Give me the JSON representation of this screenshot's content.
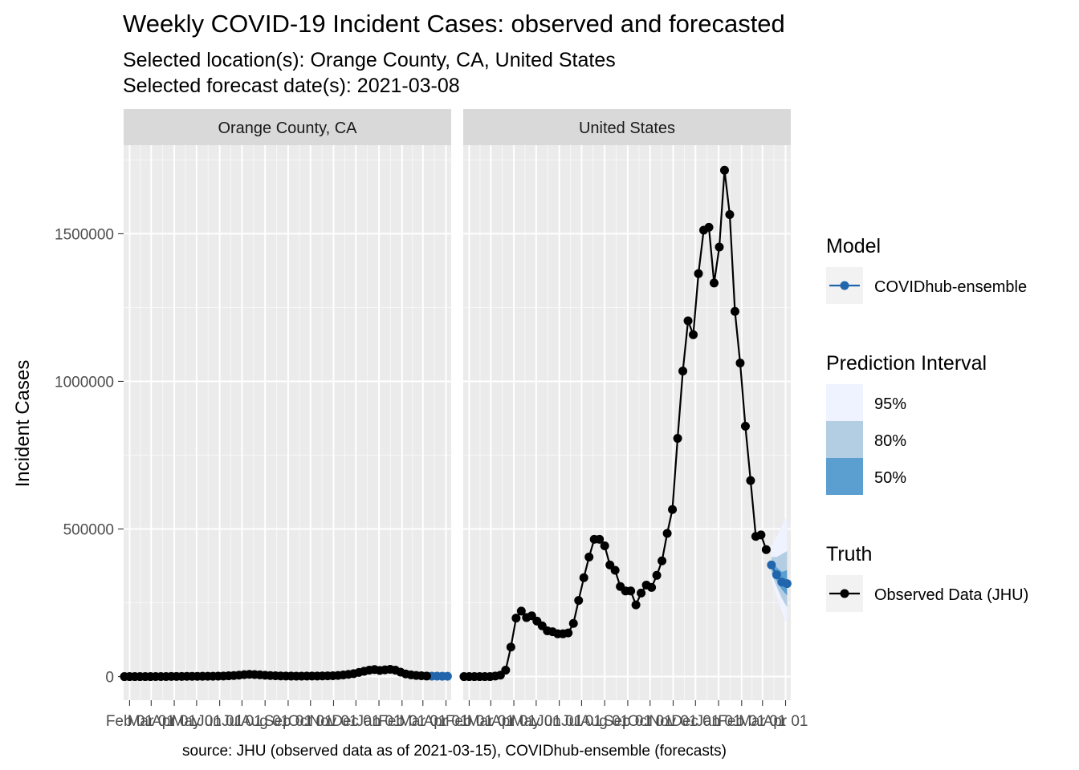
{
  "chart_data": {
    "type": "line",
    "title": "Weekly COVID-19 Incident Cases: observed and forecasted",
    "subtitle_lines": [
      "Selected location(s): Orange County, CA, United States",
      "Selected forecast date(s): 2021-03-08"
    ],
    "caption": "source: JHU (observed data as of 2021-03-15), COVIDhub-ensemble (forecasts)",
    "ylabel": "Incident Cases",
    "xlabel": "",
    "ylim": [
      -80000,
      1800000
    ],
    "y_ticks": [
      0,
      500000,
      1000000,
      1500000
    ],
    "y_tick_labels": [
      "0",
      "500000",
      "1000000",
      "1500000"
    ],
    "x_range": [
      "2020-01-24",
      "2021-04-08"
    ],
    "x_tick_dates": [
      "2020-02-01",
      "2020-03-01",
      "2020-04-01",
      "2020-05-01",
      "2020-06-01",
      "2020-07-01",
      "2020-08-01",
      "2020-09-01",
      "2020-10-01",
      "2020-11-01",
      "2020-12-01",
      "2021-01-01",
      "2021-02-01",
      "2021-03-01",
      "2021-04-01"
    ],
    "x_tick_labels": [
      "Feb 01",
      "Mar 01",
      "Apr 01",
      "May 01",
      "Jun 01",
      "Jul 01",
      "Aug 01",
      "Sep 01",
      "Oct 01",
      "Nov 01",
      "Dec 01",
      "Jan 01",
      "Feb 01",
      "Mar 01",
      "Apr 01"
    ],
    "grid": true,
    "legend_placement": "right",
    "colors": {
      "panel_bg": "#ebebeb",
      "strip_bg": "#d9d9d9",
      "truth": "#000000",
      "forecast": "#2166ac",
      "pi95": "#eff3ff",
      "pi80": "#b3cde3",
      "pi50": "#5b9fd0"
    },
    "panels": [
      {
        "name": "Orange County, CA",
        "truth": {
          "x": [
            "2020-01-25",
            "2020-02-01",
            "2020-02-08",
            "2020-02-15",
            "2020-02-22",
            "2020-02-29",
            "2020-03-07",
            "2020-03-14",
            "2020-03-21",
            "2020-03-28",
            "2020-04-04",
            "2020-04-11",
            "2020-04-18",
            "2020-04-25",
            "2020-05-02",
            "2020-05-09",
            "2020-05-16",
            "2020-05-23",
            "2020-05-30",
            "2020-06-06",
            "2020-06-13",
            "2020-06-20",
            "2020-06-27",
            "2020-07-04",
            "2020-07-11",
            "2020-07-18",
            "2020-07-25",
            "2020-08-01",
            "2020-08-08",
            "2020-08-15",
            "2020-08-22",
            "2020-08-29",
            "2020-09-05",
            "2020-09-12",
            "2020-09-19",
            "2020-09-26",
            "2020-10-03",
            "2020-10-10",
            "2020-10-17",
            "2020-10-24",
            "2020-10-31",
            "2020-11-07",
            "2020-11-14",
            "2020-11-21",
            "2020-11-28",
            "2020-12-05",
            "2020-12-12",
            "2020-12-19",
            "2020-12-26",
            "2021-01-02",
            "2021-01-09",
            "2021-01-16",
            "2021-01-23",
            "2021-01-30",
            "2021-02-06",
            "2021-02-13",
            "2021-02-20",
            "2021-02-27",
            "2021-03-06"
          ],
          "y": [
            0,
            0,
            0,
            0,
            0,
            0,
            20,
            80,
            250,
            400,
            500,
            600,
            700,
            800,
            900,
            1000,
            1100,
            1200,
            1500,
            2000,
            2700,
            3500,
            5000,
            6500,
            7500,
            7000,
            6000,
            4500,
            3500,
            2800,
            2200,
            1900,
            1700,
            1600,
            1600,
            1700,
            1800,
            1900,
            2100,
            2400,
            3000,
            4000,
            5500,
            7500,
            10000,
            14000,
            18000,
            22000,
            24000,
            21000,
            23000,
            24500,
            22000,
            15000,
            9000,
            6000,
            4000,
            2800,
            2000
          ]
        },
        "forecast": {
          "x": [
            "2021-03-13",
            "2021-03-20",
            "2021-03-27",
            "2021-04-03"
          ],
          "median": [
            1600,
            1400,
            1250,
            1150
          ],
          "pi95": {
            "lower": [
              800,
              500,
              400,
              300
            ],
            "upper": [
              2600,
              2800,
              3000,
              3200
            ]
          },
          "pi80": {
            "lower": [
              1100,
              900,
              700,
              600
            ],
            "upper": [
              2100,
              2100,
              2200,
              2300
            ]
          },
          "pi50": {
            "lower": [
              1350,
              1150,
              1000,
              900
            ],
            "upper": [
              1850,
              1700,
              1600,
              1550
            ]
          }
        }
      },
      {
        "name": "United States",
        "truth": {
          "x": [
            "2020-01-25",
            "2020-02-01",
            "2020-02-08",
            "2020-02-15",
            "2020-02-22",
            "2020-02-29",
            "2020-03-07",
            "2020-03-14",
            "2020-03-21",
            "2020-03-28",
            "2020-04-04",
            "2020-04-11",
            "2020-04-18",
            "2020-04-25",
            "2020-05-02",
            "2020-05-09",
            "2020-05-16",
            "2020-05-23",
            "2020-05-30",
            "2020-06-06",
            "2020-06-13",
            "2020-06-20",
            "2020-06-27",
            "2020-07-04",
            "2020-07-11",
            "2020-07-18",
            "2020-07-25",
            "2020-08-01",
            "2020-08-08",
            "2020-08-15",
            "2020-08-22",
            "2020-08-29",
            "2020-09-05",
            "2020-09-12",
            "2020-09-19",
            "2020-09-26",
            "2020-10-03",
            "2020-10-10",
            "2020-10-17",
            "2020-10-24",
            "2020-10-31",
            "2020-11-07",
            "2020-11-14",
            "2020-11-21",
            "2020-11-28",
            "2020-12-05",
            "2020-12-12",
            "2020-12-19",
            "2020-12-26",
            "2021-01-02",
            "2021-01-09",
            "2021-01-16",
            "2021-01-23",
            "2021-01-30",
            "2021-02-06",
            "2021-02-13",
            "2021-02-20",
            "2021-02-27",
            "2021-03-06"
          ],
          "y": [
            0,
            0,
            0,
            0,
            0,
            0,
            2000,
            5000,
            22000,
            100000,
            198000,
            222000,
            200000,
            206000,
            188000,
            172000,
            155000,
            152000,
            145000,
            145000,
            148000,
            180000,
            258000,
            335000,
            405000,
            465000,
            465000,
            443000,
            378000,
            360000,
            305000,
            290000,
            290000,
            243000,
            283000,
            310000,
            302000,
            343000,
            392000,
            485000,
            566000,
            807000,
            1035000,
            1205000,
            1158000,
            1365000,
            1512000,
            1522000,
            1333000,
            1455000,
            1715000,
            1565000,
            1237000,
            1062000,
            848000,
            664000,
            475000,
            480000,
            430000
          ]
        },
        "forecast": {
          "x": [
            "2021-03-13",
            "2021-03-20",
            "2021-03-27",
            "2021-04-03"
          ],
          "median": [
            378000,
            345000,
            320000,
            315000
          ],
          "pi95": {
            "lower": [
              330000,
              270000,
              220000,
              175000
            ],
            "upper": [
              440000,
              475000,
              510000,
              545000
            ]
          },
          "pi80": {
            "lower": [
              350000,
              305000,
              265000,
              235000
            ],
            "upper": [
              405000,
              405000,
              415000,
              425000
            ]
          },
          "pi50": {
            "lower": [
              365000,
              325000,
              295000,
              275000
            ],
            "upper": [
              392000,
              370000,
              355000,
              360000
            ]
          }
        }
      }
    ],
    "legend": {
      "model_title": "Model",
      "model_items": [
        {
          "label": "COVIDhub-ensemble",
          "color": "#2166ac"
        }
      ],
      "pi_title": "Prediction Interval",
      "pi_items": [
        {
          "label": "95%",
          "color": "#eff3ff"
        },
        {
          "label": "80%",
          "color": "#b3cde3"
        },
        {
          "label": "50%",
          "color": "#5b9fd0"
        }
      ],
      "truth_title": "Truth",
      "truth_items": [
        {
          "label": "Observed Data (JHU)",
          "color": "#000000"
        }
      ]
    }
  }
}
